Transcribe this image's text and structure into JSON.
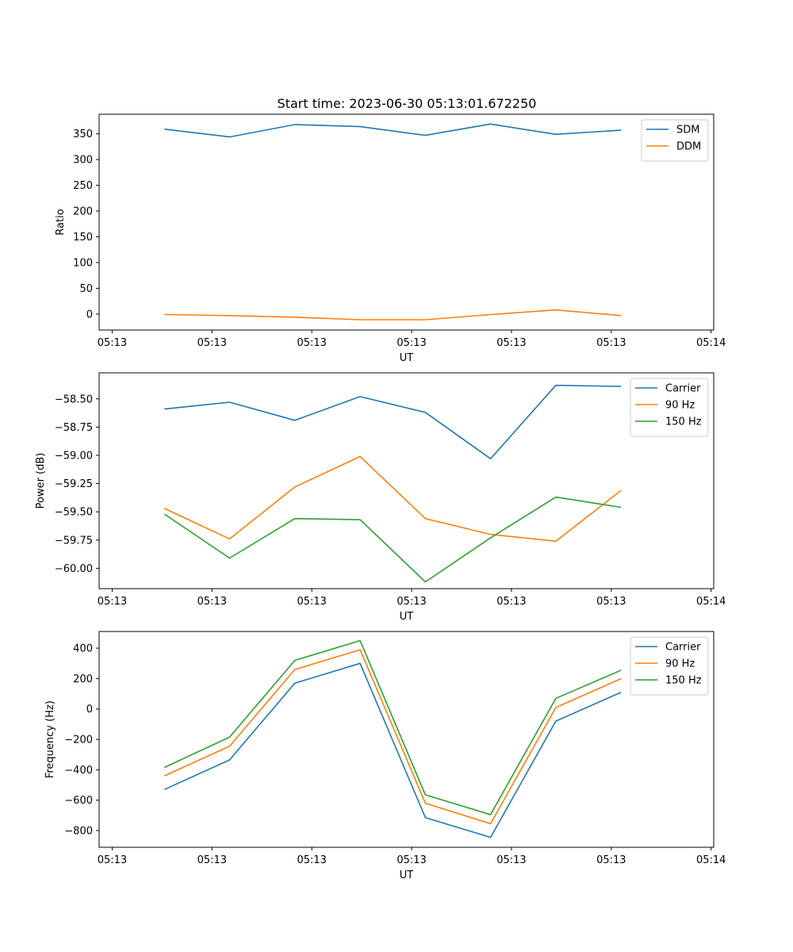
{
  "title": "Start time: 2023-06-30 05:13:01.672250",
  "x_ticks": [
    "05:13",
    "05:13",
    "05:13",
    "05:13",
    "05:13",
    "05:13",
    "05:14"
  ],
  "chart_data": [
    {
      "type": "line",
      "title": "Start time: 2023-06-30 05:13:01.672250",
      "xlabel": "UT",
      "ylabel": "Ratio",
      "x": [
        1,
        2,
        3,
        4,
        5,
        6,
        7,
        8
      ],
      "x_tick_labels": [
        "05:13",
        "05:13",
        "05:13",
        "05:13",
        "05:13",
        "05:13",
        "05:14"
      ],
      "ylim": [
        -31,
        388
      ],
      "y_ticks": [
        0,
        50,
        100,
        150,
        200,
        250,
        300,
        350
      ],
      "grid": false,
      "legend": "upper right",
      "series": [
        {
          "name": "SDM",
          "color": "#1f77b4",
          "values": [
            359,
            344,
            368,
            364,
            347,
            369,
            349,
            357
          ]
        },
        {
          "name": "DDM",
          "color": "#ff7f0e",
          "values": [
            -1,
            -3,
            -6,
            -11,
            -11,
            -1,
            8,
            -3
          ]
        }
      ]
    },
    {
      "type": "line",
      "xlabel": "UT",
      "ylabel": "Power (dB)",
      "x": [
        1,
        2,
        3,
        4,
        5,
        6,
        7,
        8
      ],
      "x_tick_labels": [
        "05:13",
        "05:13",
        "05:13",
        "05:13",
        "05:13",
        "05:13",
        "05:14"
      ],
      "ylim": [
        -60.18,
        -58.27
      ],
      "y_ticks": [
        -60.0,
        -59.75,
        -59.5,
        -59.25,
        -59.0,
        -58.75,
        -58.5
      ],
      "y_tick_labels": [
        "−60.00",
        "−59.75",
        "−59.50",
        "−59.25",
        "−59.00",
        "−58.75",
        "−58.50"
      ],
      "grid": false,
      "legend": "upper right",
      "series": [
        {
          "name": "Carrier",
          "color": "#1f77b4",
          "values": [
            -58.59,
            -58.53,
            -58.69,
            -58.48,
            -58.62,
            -59.03,
            -58.38,
            -58.39
          ]
        },
        {
          "name": "90 Hz",
          "color": "#ff7f0e",
          "values": [
            -59.47,
            -59.74,
            -59.28,
            -59.01,
            -59.56,
            -59.7,
            -59.76,
            -59.31
          ]
        },
        {
          "name": "150 Hz",
          "color": "#2ca02c",
          "values": [
            -59.52,
            -59.91,
            -59.56,
            -59.57,
            -60.12,
            -59.73,
            -59.37,
            -59.46
          ]
        }
      ]
    },
    {
      "type": "line",
      "xlabel": "UT",
      "ylabel": "Frequency (Hz)",
      "x": [
        1,
        2,
        3,
        4,
        5,
        6,
        7,
        8
      ],
      "x_tick_labels": [
        "05:13",
        "05:13",
        "05:13",
        "05:13",
        "05:13",
        "05:13",
        "05:14"
      ],
      "ylim": [
        -910,
        510
      ],
      "y_ticks": [
        -800,
        -600,
        -400,
        -200,
        0,
        200,
        400
      ],
      "y_tick_labels": [
        "−800",
        "−600",
        "−400",
        "−200",
        "0",
        "200",
        "400"
      ],
      "grid": false,
      "legend": "upper right",
      "series": [
        {
          "name": "Carrier",
          "color": "#1f77b4",
          "values": [
            -530,
            -335,
            170,
            300,
            -715,
            -845,
            -80,
            110
          ]
        },
        {
          "name": "90 Hz",
          "color": "#ff7f0e",
          "values": [
            -440,
            -245,
            260,
            390,
            -620,
            -755,
            10,
            200
          ]
        },
        {
          "name": "150 Hz",
          "color": "#2ca02c",
          "values": [
            -385,
            -185,
            320,
            450,
            -565,
            -695,
            70,
            255
          ]
        }
      ]
    }
  ]
}
